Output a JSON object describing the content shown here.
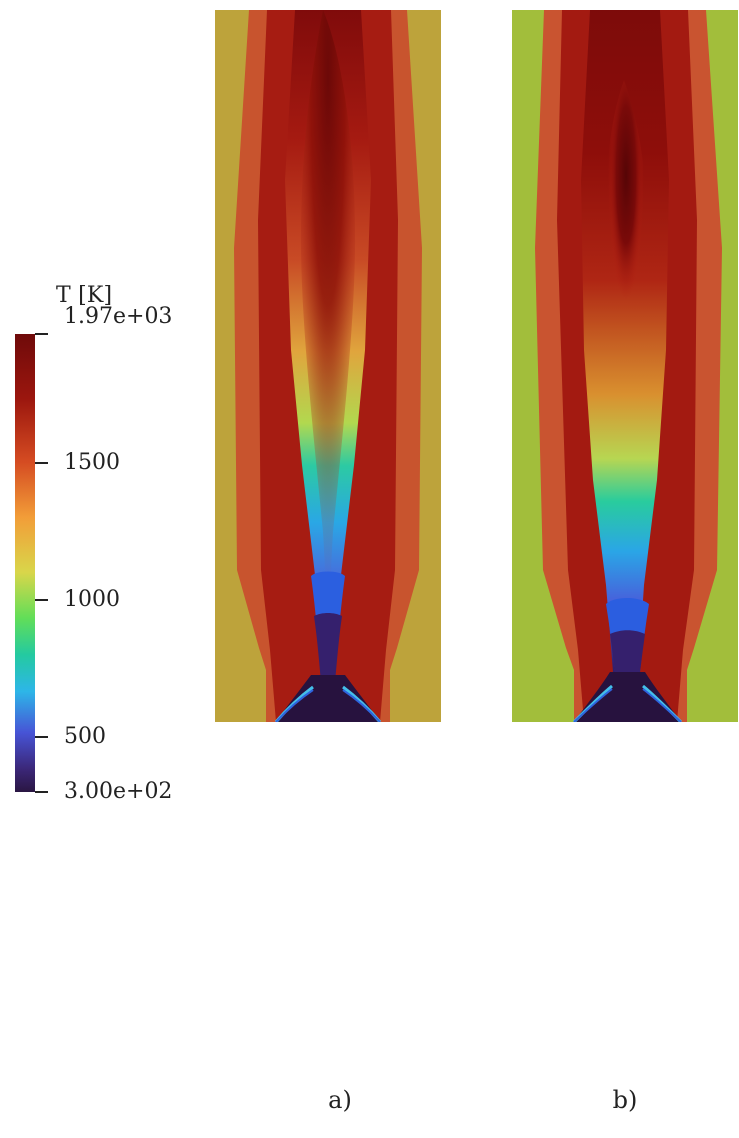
{
  "figure": {
    "legend_title": "T [K]",
    "colorbar": {
      "max_label": "1.97e+03",
      "label_1500": "1500",
      "label_1000": "1000",
      "label_500": "500",
      "min_label": "3.00e+02",
      "range": [
        300,
        1970
      ],
      "ticks": [
        1970,
        1500,
        1000,
        500,
        300
      ]
    },
    "panels": [
      {
        "caption": "a)",
        "wall_fill": "#BFA33A"
      },
      {
        "caption": "b)",
        "wall_fill": "#9FBF3A"
      }
    ],
    "colors": {
      "dark_blue": "#2A1642",
      "blue": "#3E57D6",
      "cyan": "#2DC2E1",
      "green": "#53D55A",
      "yellow": "#D9D64A",
      "orange": "#F2A13A",
      "red": "#C7462C",
      "dark_red": "#6F0A0A"
    }
  }
}
